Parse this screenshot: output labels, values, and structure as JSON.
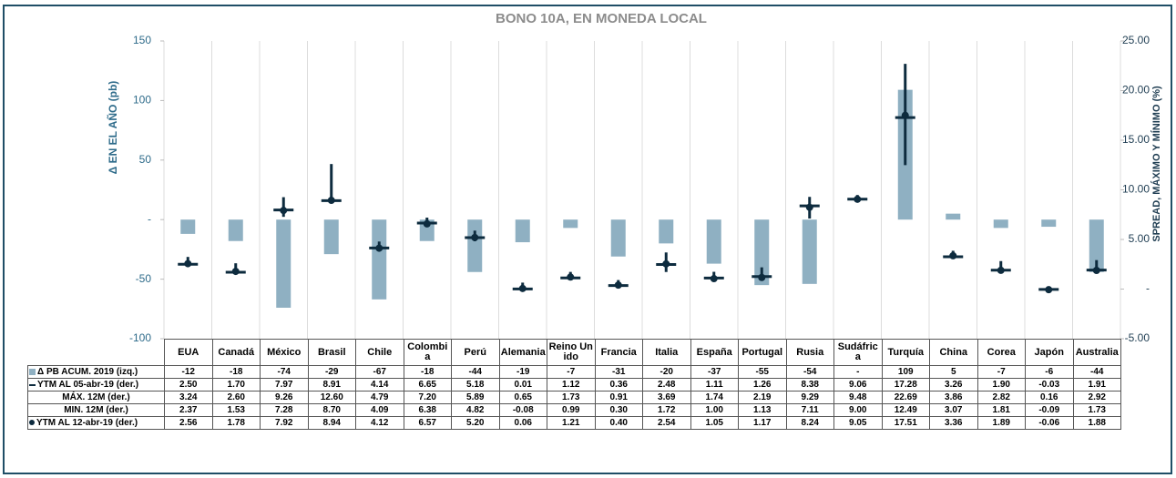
{
  "chart_data": {
    "type": "bar-hilo",
    "title": "BONO 10A, EN MONEDA LOCAL",
    "y_label": "Δ EN EL AÑO (pb)",
    "y2_label": "SPREAD, MÁXIMO Y MÍNIMO (%)",
    "categories": [
      "EUA",
      "Canadá",
      "México",
      "Brasil",
      "Chile",
      "Colombia",
      "Perú",
      "Alemania",
      "Reino Unido",
      "Francia",
      "Italia",
      "España",
      "Portugal",
      "Rusia",
      "Sudáfrica",
      "Turquía",
      "China",
      "Corea",
      "Japón",
      "Australia"
    ],
    "ylim": [
      -100,
      150
    ],
    "yticks": [
      -100,
      -50,
      {
        "value": 0,
        "label": "-"
      },
      50,
      100,
      150
    ],
    "y2lim": [
      -5,
      25
    ],
    "y2ticks": [
      {
        "value": -5,
        "label": "-5.00"
      },
      {
        "value": 0,
        "label": "-"
      },
      {
        "value": 5,
        "label": "5.00"
      },
      {
        "value": 10,
        "label": "10.00"
      },
      {
        "value": 15,
        "label": "15.00"
      },
      {
        "value": 20,
        "label": "20.00"
      },
      {
        "value": 25,
        "label": "25.00"
      }
    ],
    "series": [
      {
        "name": "Δ PB ACUM. 2019 (izq.)",
        "color": "#8fb0c2",
        "axis": "y",
        "values": [
          -12,
          -18,
          -74,
          -29,
          -67,
          -18,
          -44,
          -19,
          -7,
          -31,
          -20,
          -37,
          -55,
          -54,
          null,
          109,
          5,
          -7,
          -6,
          -44
        ],
        "value_labels": [
          "-12",
          "-18",
          "-74",
          "-29",
          "-67",
          "-18",
          "-44",
          "-19",
          "-7",
          "-31",
          "-20",
          "-37",
          "-55",
          "-54",
          "-",
          "109",
          "5",
          "-7",
          "-6",
          "-44"
        ]
      },
      {
        "name": "YTM AL 05-abr-19 (der.)",
        "color": "#0d2b3e",
        "axis": "y2",
        "values": [
          2.5,
          1.7,
          7.97,
          8.91,
          4.14,
          6.65,
          5.18,
          0.01,
          1.12,
          0.36,
          2.48,
          1.11,
          1.26,
          8.38,
          9.06,
          17.28,
          3.26,
          1.9,
          -0.03,
          1.91
        ],
        "value_labels": [
          "2.50",
          "1.70",
          "7.97",
          "8.91",
          "4.14",
          "6.65",
          "5.18",
          "0.01",
          "1.12",
          "0.36",
          "2.48",
          "1.11",
          "1.26",
          "8.38",
          "9.06",
          "17.28",
          "3.26",
          "1.90",
          "-0.03",
          "1.91"
        ]
      },
      {
        "name": "MÁX. 12M (der.)",
        "color": "#0d2b3e",
        "axis": "y2",
        "values": [
          3.24,
          2.6,
          9.26,
          12.6,
          4.79,
          7.2,
          5.89,
          0.65,
          1.73,
          0.91,
          3.69,
          1.74,
          2.19,
          9.29,
          9.48,
          22.69,
          3.86,
          2.82,
          0.16,
          2.92
        ],
        "value_labels": [
          "3.24",
          "2.60",
          "9.26",
          "12.60",
          "4.79",
          "7.20",
          "5.89",
          "0.65",
          "1.73",
          "0.91",
          "3.69",
          "1.74",
          "2.19",
          "9.29",
          "9.48",
          "22.69",
          "3.86",
          "2.82",
          "0.16",
          "2.92"
        ]
      },
      {
        "name": "MIN. 12M (der.)",
        "color": "#0d2b3e",
        "axis": "y2",
        "values": [
          2.37,
          1.53,
          7.28,
          8.7,
          4.09,
          6.38,
          4.82,
          -0.08,
          0.99,
          0.3,
          1.72,
          1.0,
          1.13,
          7.11,
          9.0,
          12.49,
          3.07,
          1.81,
          -0.09,
          1.73
        ],
        "value_labels": [
          "2.37",
          "1.53",
          "7.28",
          "8.70",
          "4.09",
          "6.38",
          "4.82",
          "-0.08",
          "0.99",
          "0.30",
          "1.72",
          "1.00",
          "1.13",
          "7.11",
          "9.00",
          "12.49",
          "3.07",
          "1.81",
          "-0.09",
          "1.73"
        ]
      },
      {
        "name": "YTM AL 12-abr-19 (der.)",
        "color": "#0d2b3e",
        "axis": "y2",
        "values": [
          2.56,
          1.78,
          7.92,
          8.94,
          4.12,
          6.57,
          5.2,
          0.06,
          1.21,
          0.4,
          2.54,
          1.05,
          1.17,
          8.24,
          9.05,
          17.51,
          3.36,
          1.89,
          -0.06,
          1.88
        ],
        "value_labels": [
          "2.56",
          "1.78",
          "7.92",
          "8.94",
          "4.12",
          "6.57",
          "5.20",
          "0.06",
          "1.21",
          "0.40",
          "2.54",
          "1.05",
          "1.17",
          "8.24",
          "9.05",
          "17.51",
          "3.36",
          "1.89",
          "-0.06",
          "1.88"
        ]
      }
    ]
  }
}
